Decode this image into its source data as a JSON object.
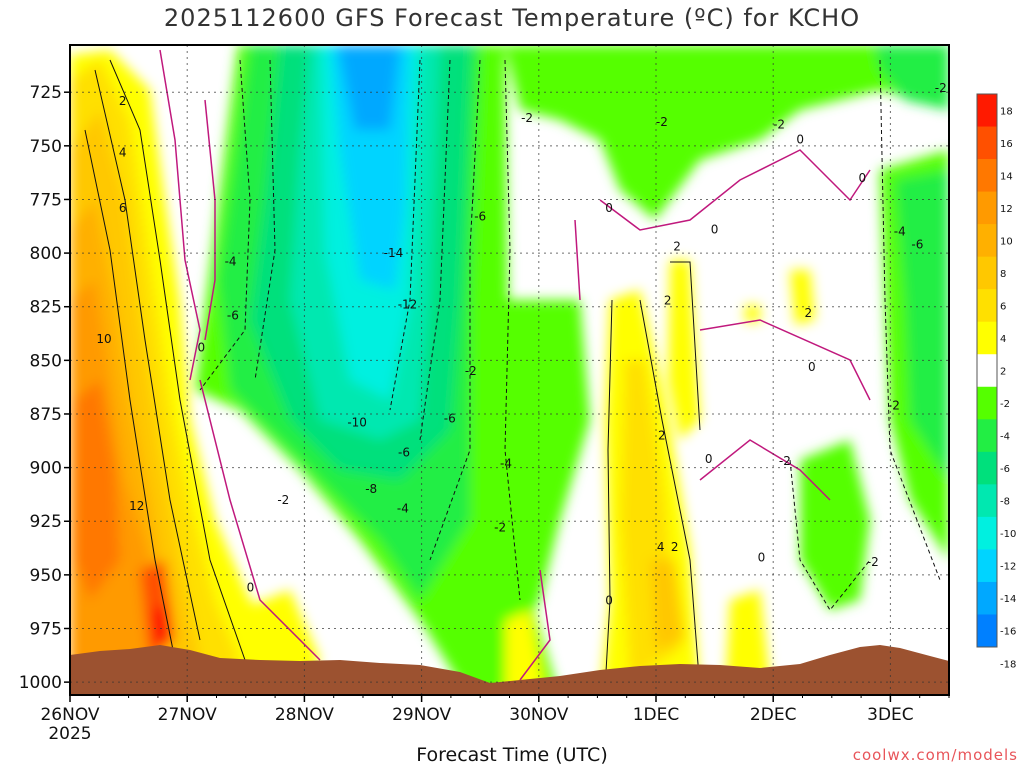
{
  "title": "2025112600 GFS Forecast Temperature (ºC) for KCHO",
  "xlabel": "Forecast Time (UTC)",
  "credit": "coolwx.com/models",
  "chart_data": {
    "type": "heatmap",
    "title": "2025112600 GFS Forecast Temperature (ºC) for KCHO",
    "xlabel": "Forecast Time (UTC)",
    "ylabel": "",
    "x_tick_labels": [
      "26NOV",
      "27NOV",
      "28NOV",
      "29NOV",
      "30NOV",
      "1DEC",
      "2DEC",
      "3DEC"
    ],
    "x_year_label": "2025",
    "xlim_days_from_26nov": [
      0,
      7.5
    ],
    "y_tick_labels": [
      "725",
      "750",
      "775",
      "800",
      "825",
      "850",
      "875",
      "900",
      "925",
      "950",
      "975",
      "1000"
    ],
    "y_ticks": [
      725,
      750,
      775,
      800,
      825,
      850,
      875,
      900,
      925,
      950,
      975,
      1000
    ],
    "ylim_hpa": [
      1006,
      703
    ],
    "y_axis": "pressure, decreasing upward",
    "grid": true,
    "colorbar": {
      "position": "right",
      "tick_labels": [
        "18",
        "16",
        "14",
        "12",
        "10",
        "8",
        "6",
        "4",
        "2",
        "-2",
        "-4",
        "-6",
        "-8",
        "-10",
        "-12",
        "-14",
        "-16",
        "-18"
      ],
      "colors": [
        "#ff1a00",
        "#ff5000",
        "#ff7800",
        "#ff9a00",
        "#ffb000",
        "#ffc800",
        "#ffe000",
        "#ffff00",
        "#ffffff",
        "#55ff00",
        "#22ee44",
        "#00e07c",
        "#00e8b0",
        "#00f0e0",
        "#00d4ff",
        "#00a8ff",
        "#0080ff"
      ]
    },
    "contour_labels": [
      {
        "text": "2",
        "day": 0.45,
        "hpa": 729
      },
      {
        "text": "4",
        "day": 0.45,
        "hpa": 753
      },
      {
        "text": "6",
        "day": 0.45,
        "hpa": 779
      },
      {
        "text": "10",
        "day": 0.29,
        "hpa": 840
      },
      {
        "text": "12",
        "day": 0.57,
        "hpa": 918
      },
      {
        "text": "0",
        "day": 1.12,
        "hpa": 844
      },
      {
        "text": "-4",
        "day": 1.37,
        "hpa": 804
      },
      {
        "text": "-6",
        "day": 1.39,
        "hpa": 829
      },
      {
        "text": "0",
        "day": 1.54,
        "hpa": 956
      },
      {
        "text": "-2",
        "day": 1.82,
        "hpa": 915
      },
      {
        "text": "-14",
        "day": 2.76,
        "hpa": 800
      },
      {
        "text": "-12",
        "day": 2.88,
        "hpa": 824
      },
      {
        "text": "-10",
        "day": 2.45,
        "hpa": 879
      },
      {
        "text": "-8",
        "day": 2.57,
        "hpa": 910
      },
      {
        "text": "-6",
        "day": 2.85,
        "hpa": 893
      },
      {
        "text": "-4",
        "day": 2.84,
        "hpa": 919
      },
      {
        "text": "-6",
        "day": 3.24,
        "hpa": 877
      },
      {
        "text": "-6",
        "day": 3.5,
        "hpa": 783
      },
      {
        "text": "-2",
        "day": 3.9,
        "hpa": 737
      },
      {
        "text": "-2",
        "day": 3.42,
        "hpa": 855
      },
      {
        "text": "-4",
        "day": 3.72,
        "hpa": 898
      },
      {
        "text": "-2",
        "day": 3.67,
        "hpa": 928
      },
      {
        "text": "0",
        "day": 4.6,
        "hpa": 779
      },
      {
        "text": "0",
        "day": 5.5,
        "hpa": 789
      },
      {
        "text": "2",
        "day": 5.1,
        "hpa": 822
      },
      {
        "text": "2",
        "day": 5.18,
        "hpa": 797
      },
      {
        "text": "2",
        "day": 5.05,
        "hpa": 885
      },
      {
        "text": "4",
        "day": 5.04,
        "hpa": 937
      },
      {
        "text": "2",
        "day": 5.16,
        "hpa": 937
      },
      {
        "text": "0",
        "day": 5.45,
        "hpa": 896
      },
      {
        "text": "0",
        "day": 4.6,
        "hpa": 962
      },
      {
        "text": "-2",
        "day": 5.05,
        "hpa": 739
      },
      {
        "text": "-2",
        "day": 6.05,
        "hpa": 740
      },
      {
        "text": "0",
        "day": 6.23,
        "hpa": 747
      },
      {
        "text": "0",
        "day": 6.76,
        "hpa": 765
      },
      {
        "text": "-2",
        "day": 7.43,
        "hpa": 723
      },
      {
        "text": "2",
        "day": 6.3,
        "hpa": 828
      },
      {
        "text": "0",
        "day": 6.33,
        "hpa": 853
      },
      {
        "text": "-2",
        "day": 6.1,
        "hpa": 897
      },
      {
        "text": "0",
        "day": 5.9,
        "hpa": 942
      },
      {
        "text": "-2",
        "day": 6.85,
        "hpa": 944
      },
      {
        "text": "-2",
        "day": 7.03,
        "hpa": 871
      },
      {
        "text": "-4",
        "day": 7.08,
        "hpa": 790
      },
      {
        "text": "-6",
        "day": 7.23,
        "hpa": 796
      }
    ]
  }
}
